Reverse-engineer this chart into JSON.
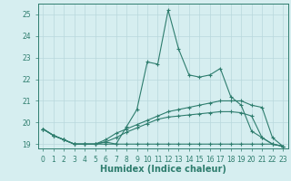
{
  "x": [
    0,
    1,
    2,
    3,
    4,
    5,
    6,
    7,
    8,
    9,
    10,
    11,
    12,
    13,
    14,
    15,
    16,
    17,
    18,
    19,
    20,
    21,
    22,
    23
  ],
  "line_max": [
    19.7,
    19.4,
    19.2,
    19.0,
    19.0,
    19.0,
    19.1,
    19.0,
    19.8,
    20.6,
    22.8,
    22.7,
    25.2,
    23.4,
    22.2,
    22.1,
    22.2,
    22.5,
    21.2,
    20.8,
    19.6,
    19.3,
    19.0,
    18.9
  ],
  "line_avg": [
    19.7,
    19.4,
    19.2,
    19.0,
    19.0,
    19.0,
    19.2,
    19.5,
    19.7,
    19.9,
    20.1,
    20.3,
    20.5,
    20.6,
    20.7,
    20.8,
    20.9,
    21.0,
    21.0,
    21.0,
    20.8,
    20.7,
    19.3,
    18.9
  ],
  "line_min": [
    19.7,
    19.4,
    19.2,
    19.0,
    19.0,
    19.0,
    19.0,
    19.0,
    19.0,
    19.0,
    19.0,
    19.0,
    19.0,
    19.0,
    19.0,
    19.0,
    19.0,
    19.0,
    19.0,
    19.0,
    19.0,
    19.0,
    19.0,
    18.9
  ],
  "line_med": [
    19.7,
    19.4,
    19.2,
    19.0,
    19.0,
    19.0,
    19.1,
    19.3,
    19.55,
    19.75,
    19.95,
    20.15,
    20.25,
    20.3,
    20.35,
    20.4,
    20.45,
    20.5,
    20.5,
    20.45,
    20.3,
    19.3,
    19.0,
    18.9
  ],
  "color": "#2e7d6e",
  "bg_color": "#d6eef0",
  "grid_color": "#b8d8dc",
  "xlabel": "Humidex (Indice chaleur)",
  "ylim": [
    18.8,
    25.5
  ],
  "xlim": [
    -0.5,
    23.5
  ],
  "yticks": [
    19,
    20,
    21,
    22,
    23,
    24,
    25
  ],
  "xticks": [
    0,
    1,
    2,
    3,
    4,
    5,
    6,
    7,
    8,
    9,
    10,
    11,
    12,
    13,
    14,
    15,
    16,
    17,
    18,
    19,
    20,
    21,
    22,
    23
  ],
  "tick_fontsize": 5.5,
  "label_fontsize": 7.0
}
